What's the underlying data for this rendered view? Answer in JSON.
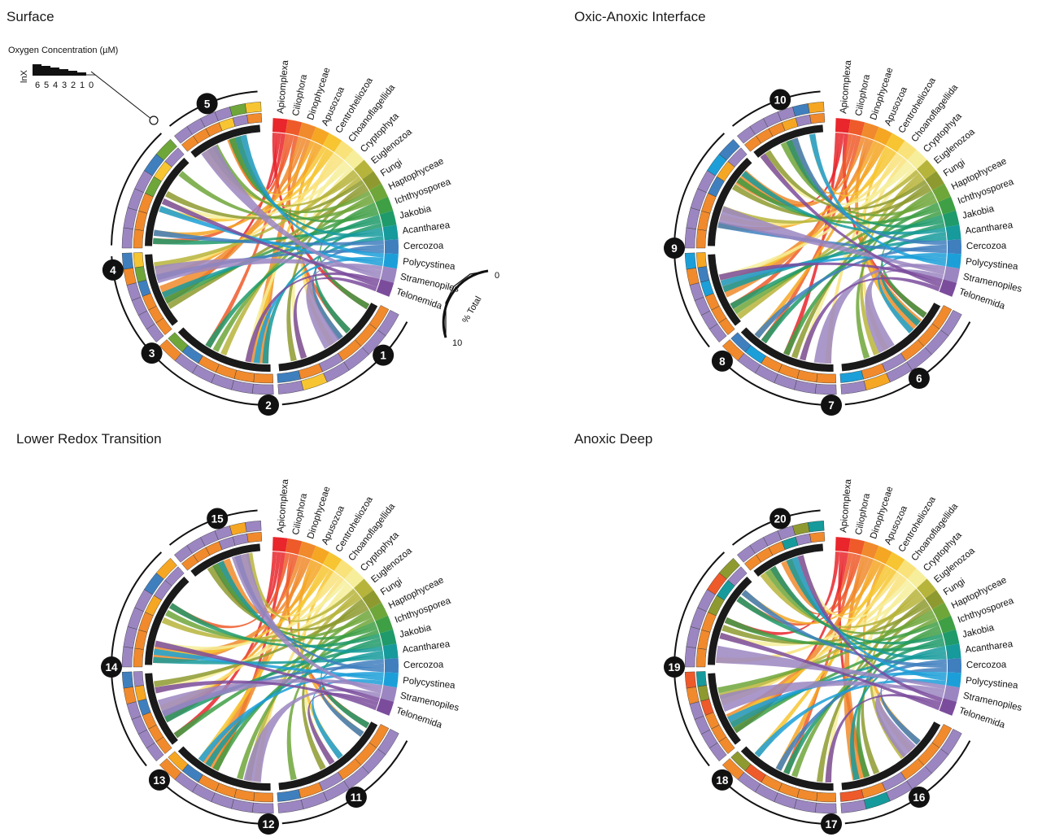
{
  "taxa": [
    {
      "name": "Apicomplexa",
      "color": "#e8262b"
    },
    {
      "name": "Ciliophora",
      "color": "#ee5a2a"
    },
    {
      "name": "Dinophyceae",
      "color": "#f08a2c"
    },
    {
      "name": "Apusozoa",
      "color": "#f5a623"
    },
    {
      "name": "Centroheliozoa",
      "color": "#f7c531"
    },
    {
      "name": "Choanoflagellida",
      "color": "#f9e27a"
    },
    {
      "name": "Cryptophyta",
      "color": "#f6ee9b"
    },
    {
      "name": "Euglenozoa",
      "color": "#b7b43b"
    },
    {
      "name": "Fungi",
      "color": "#8e9a2f"
    },
    {
      "name": "Haptophyceae",
      "color": "#6ea63a"
    },
    {
      "name": "Ichthyosporea",
      "color": "#3f9f45"
    },
    {
      "name": "Jakobia",
      "color": "#1f9a6a"
    },
    {
      "name": "Acantharea",
      "color": "#169a9b"
    },
    {
      "name": "Cercozoa",
      "color": "#3f7fbe"
    },
    {
      "name": "Polycystinea",
      "color": "#1c9fd8"
    },
    {
      "name": "Stramenopiles",
      "color": "#9b86c1"
    },
    {
      "name": "Telonemida",
      "color": "#7b4c9c"
    }
  ],
  "panels": [
    {
      "title": "Surface",
      "samples": [
        "1",
        "2",
        "3",
        "4",
        "5"
      ]
    },
    {
      "title": "Oxic-Anoxic Interface",
      "samples": [
        "6",
        "7",
        "8",
        "9",
        "10"
      ]
    },
    {
      "title": "Lower Redox Transition",
      "samples": [
        "11",
        "12",
        "13",
        "14",
        "15"
      ]
    },
    {
      "title": "Anoxic Deep",
      "samples": [
        "16",
        "17",
        "18",
        "19",
        "20"
      ]
    }
  ],
  "oxygen_legend": {
    "title": "Oxygen Concentration (µM)",
    "axis_label": "lnX",
    "ticks": [
      "6",
      "5",
      "4",
      "3",
      "2",
      "1",
      "0"
    ]
  },
  "percent_scale": {
    "label": "% Total",
    "top": "0",
    "bottom": "10"
  },
  "colors": {
    "ring": "#1a1a1a",
    "stramenopiles": "#9b86c1",
    "dinophyceae": "#f08a2c",
    "outline": "#222222"
  }
}
